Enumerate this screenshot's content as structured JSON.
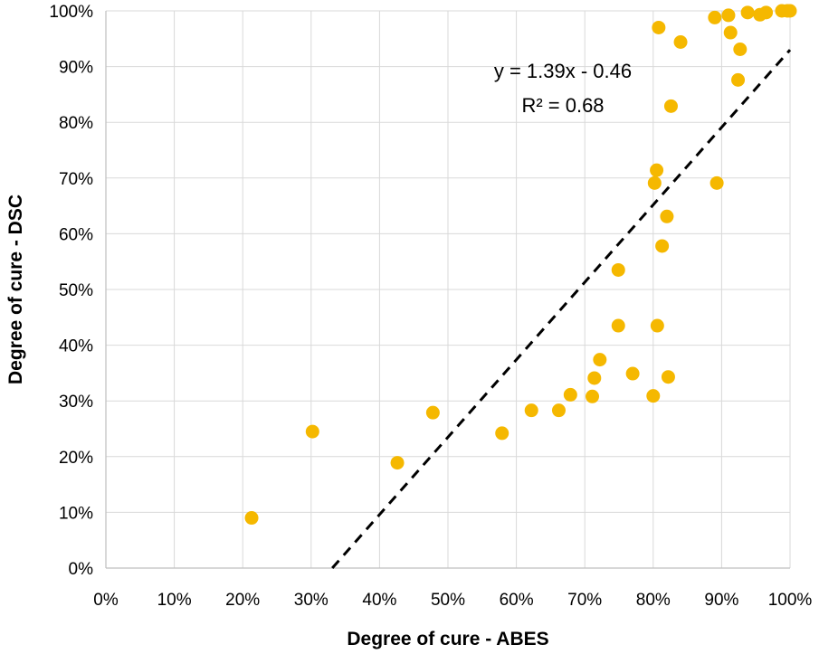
{
  "chart_data": {
    "type": "scatter",
    "xlabel": "Degree of cure - ABES",
    "ylabel": "Degree of cure - DSC",
    "xlim": [
      0,
      100
    ],
    "ylim": [
      0,
      100
    ],
    "xticks": [
      "0%",
      "10%",
      "20%",
      "30%",
      "40%",
      "50%",
      "60%",
      "70%",
      "80%",
      "90%",
      "100%"
    ],
    "yticks": [
      "0%",
      "10%",
      "20%",
      "30%",
      "40%",
      "50%",
      "60%",
      "70%",
      "80%",
      "90%",
      "100%"
    ],
    "grid": true,
    "colors": {
      "points": "#f5b800",
      "trendline": "#000000",
      "grid": "#d9d9d9"
    },
    "series": [
      {
        "points": [
          [
            21.3,
            9.0
          ],
          [
            30.2,
            24.5
          ],
          [
            42.6,
            18.9
          ],
          [
            47.8,
            27.9
          ],
          [
            57.9,
            24.2
          ],
          [
            62.2,
            28.3
          ],
          [
            66.2,
            28.3
          ],
          [
            67.9,
            31.1
          ],
          [
            71.1,
            30.8
          ],
          [
            71.4,
            34.1
          ],
          [
            72.2,
            37.4
          ],
          [
            74.9,
            43.5
          ],
          [
            74.9,
            53.5
          ],
          [
            77.0,
            34.9
          ],
          [
            80.0,
            30.9
          ],
          [
            80.2,
            69.1
          ],
          [
            80.5,
            71.4
          ],
          [
            80.6,
            43.5
          ],
          [
            80.8,
            97.0
          ],
          [
            81.3,
            57.8
          ],
          [
            82.0,
            63.1
          ],
          [
            82.2,
            34.3
          ],
          [
            82.6,
            82.9
          ],
          [
            84.0,
            94.4
          ],
          [
            89.0,
            98.8
          ],
          [
            89.3,
            69.1
          ],
          [
            91.0,
            99.2
          ],
          [
            91.3,
            96.1
          ],
          [
            92.4,
            87.6
          ],
          [
            92.7,
            93.1
          ],
          [
            93.8,
            99.7
          ],
          [
            95.6,
            99.3
          ],
          [
            96.5,
            99.7
          ],
          [
            98.8,
            100.0
          ],
          [
            99.6,
            100.0
          ],
          [
            100.0,
            100.0
          ]
        ]
      }
    ],
    "trendline": {
      "slope": 1.39,
      "intercept": -0.46,
      "equation": "y = 1.39x - 0.46",
      "r2": "R² = 0.68",
      "style": "dashed"
    }
  }
}
